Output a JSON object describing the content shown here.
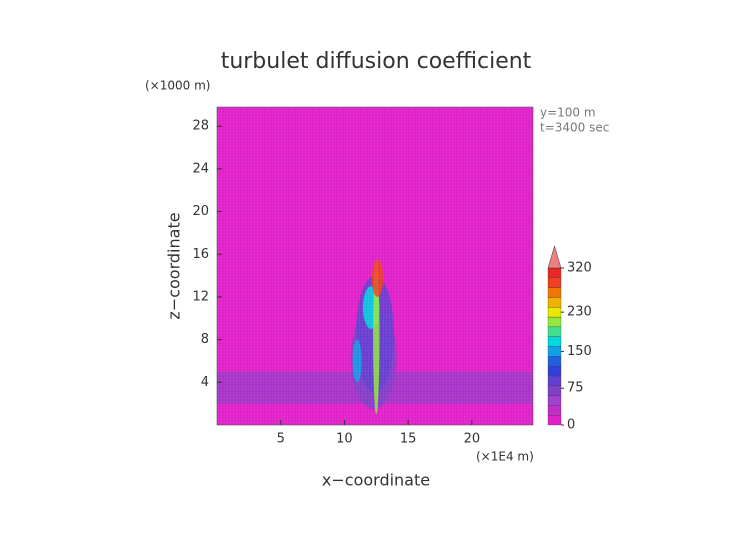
{
  "chart_data": {
    "type": "contour",
    "title": "turbulet diffusion coefficient",
    "y_unit": "(×1000 m)",
    "x_unit": "(×1E4 m)",
    "annotations": [
      "y=100 m",
      "t=3400 sec"
    ],
    "x_label": "x−coordinate",
    "y_label": "z−coordinate",
    "xlim": [
      0,
      24.8
    ],
    "xticks": [
      5,
      10,
      15,
      20
    ],
    "ylim": [
      0,
      29.8
    ],
    "yticks": [
      4,
      8,
      12,
      16,
      20,
      24,
      28
    ],
    "background_color": "#e020c8",
    "colorbar": {
      "lim": [
        0,
        320
      ],
      "ticks": [
        0,
        75,
        150,
        230,
        320
      ],
      "colors": [
        "#e020c8",
        "#c030c8",
        "#a040d0",
        "#8040c8",
        "#6040d0",
        "#3040d8",
        "#2060e0",
        "#10a0e8",
        "#00d8e0",
        "#40e090",
        "#90e840",
        "#e8e800",
        "#f0b000",
        "#f07800",
        "#f04020",
        "#e82828"
      ],
      "extend_color": "#f08080"
    },
    "band": {
      "z": [
        2,
        5
      ],
      "color": "#9a38c8"
    },
    "plume": [
      {
        "x": 12.3,
        "z": [
          1.5,
          11
        ],
        "width": 3.6,
        "value": 60
      },
      {
        "x": 12.4,
        "z": [
          3,
          14
        ],
        "width": 3.0,
        "value": 95
      },
      {
        "x": 11,
        "z": [
          4,
          8
        ],
        "width": 0.7,
        "value": 150
      },
      {
        "x": 12.1,
        "z": [
          9,
          13
        ],
        "width": 1.3,
        "value": 170
      },
      {
        "x": 12.5,
        "z": [
          1,
          15.5
        ],
        "width": 0.5,
        "value": 210
      },
      {
        "x": 12.6,
        "z": [
          12,
          15.5
        ],
        "width": 0.9,
        "value": 280
      }
    ]
  }
}
